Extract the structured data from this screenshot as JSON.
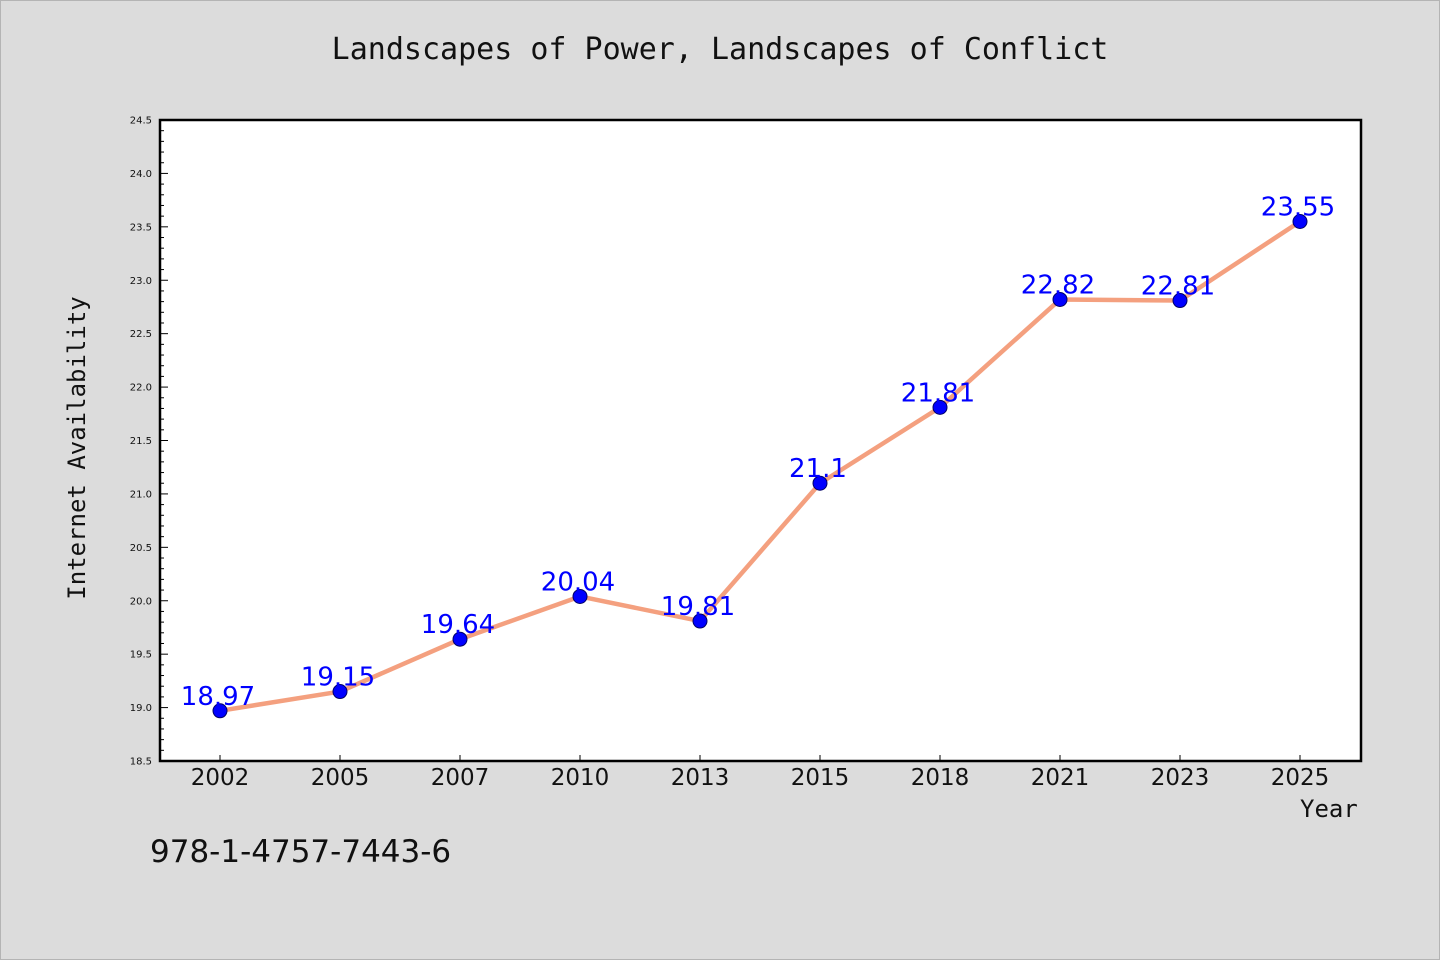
{
  "chart_data": {
    "type": "line",
    "title": "Landscapes of Power, Landscapes of Conflict",
    "xlabel": "Year",
    "ylabel": "Internet Availability",
    "categories": [
      "2002",
      "2005",
      "2007",
      "2010",
      "2013",
      "2015",
      "2018",
      "2021",
      "2023",
      "2025"
    ],
    "series": [
      {
        "values": [
          18.97,
          19.15,
          19.64,
          20.04,
          19.81,
          21.1,
          21.81,
          22.82,
          22.81,
          23.55
        ],
        "labels": [
          "18.97",
          "19.15",
          "19.64",
          "20.04",
          "19.81",
          "21.1",
          "21.81",
          "22.82",
          "22.81",
          "23.55"
        ],
        "line_color": "#f4a07f",
        "marker_color": "#0000ff"
      }
    ],
    "ylim": [
      18.5,
      24.5
    ],
    "yticks": [
      "18.5",
      "19.0",
      "19.5",
      "20.0",
      "20.5",
      "21.0",
      "21.5",
      "22.0",
      "22.5",
      "23.0",
      "23.5",
      "24.0",
      "24.5"
    ],
    "grid": false,
    "legend": "none"
  },
  "annotation": {
    "isbn": "978-1-4757-7443-6"
  },
  "colors": {
    "background": "#dcdcdc",
    "plot_background": "#ffffff",
    "label_color": "#0000ff"
  }
}
